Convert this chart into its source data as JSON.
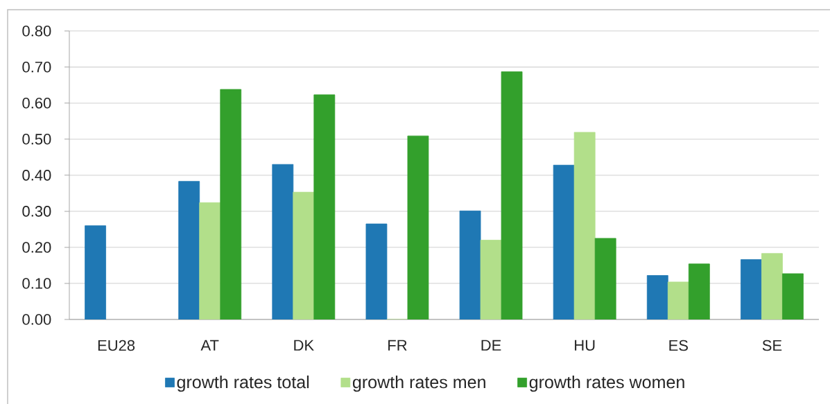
{
  "chart_data": {
    "type": "bar",
    "categories": [
      "EU28",
      "AT",
      "DK",
      "FR",
      "DE",
      "HU",
      "ES",
      "SE"
    ],
    "series": [
      {
        "name": "growth rates total",
        "color": "#1f78b4",
        "values": [
          0.26,
          0.383,
          0.43,
          0.265,
          0.301,
          0.428,
          0.122,
          0.166
        ]
      },
      {
        "name": "growth rates men",
        "color": "#b2df8a",
        "values": [
          null,
          0.324,
          0.353,
          0.0,
          0.22,
          0.519,
          0.104,
          0.183
        ]
      },
      {
        "name": "growth rates women",
        "color": "#33a02c",
        "values": [
          null,
          0.638,
          0.623,
          0.509,
          0.687,
          0.225,
          0.154,
          0.127
        ]
      }
    ],
    "ylim": [
      0,
      0.8
    ],
    "yticks": [
      {
        "value": 0,
        "label": "0.00"
      },
      {
        "value": 0.1,
        "label": "0.10"
      },
      {
        "value": 0.2,
        "label": "0.20"
      },
      {
        "value": 0.3,
        "label": "0.30"
      },
      {
        "value": 0.4,
        "label": "0.40"
      },
      {
        "value": 0.5,
        "label": "0.50"
      },
      {
        "value": 0.6,
        "label": "0.60"
      },
      {
        "value": 0.7,
        "label": "0.70"
      },
      {
        "value": 0.8,
        "label": "0.80"
      }
    ],
    "grid": "y",
    "legend": "bottom"
  }
}
